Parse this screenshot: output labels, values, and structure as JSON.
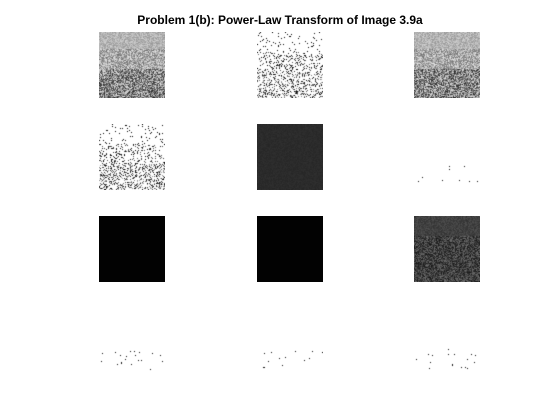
{
  "figure": {
    "title": "Problem 1(b): Power-Law Transform of Image 3.9a"
  },
  "panels": [
    {
      "id": "p0",
      "style": "mid-gray-textured"
    },
    {
      "id": "p1",
      "style": "sparse-dark-on-white"
    },
    {
      "id": "p2",
      "style": "mid-gray-textured"
    },
    {
      "id": "p3",
      "style": "sparse-dark-on-white"
    },
    {
      "id": "p4",
      "style": "very-dark-gray"
    },
    {
      "id": "p5",
      "style": "white-few-dots"
    },
    {
      "id": "p6",
      "style": "black"
    },
    {
      "id": "p7",
      "style": "black"
    },
    {
      "id": "p8",
      "style": "dark-gray-textured"
    },
    {
      "id": "p9",
      "style": "white-few-dots"
    },
    {
      "id": "p10",
      "style": "white-few-dots"
    },
    {
      "id": "p11",
      "style": "white-few-dots"
    }
  ],
  "colors": {
    "background": "#ffffff",
    "title": "#000000"
  }
}
